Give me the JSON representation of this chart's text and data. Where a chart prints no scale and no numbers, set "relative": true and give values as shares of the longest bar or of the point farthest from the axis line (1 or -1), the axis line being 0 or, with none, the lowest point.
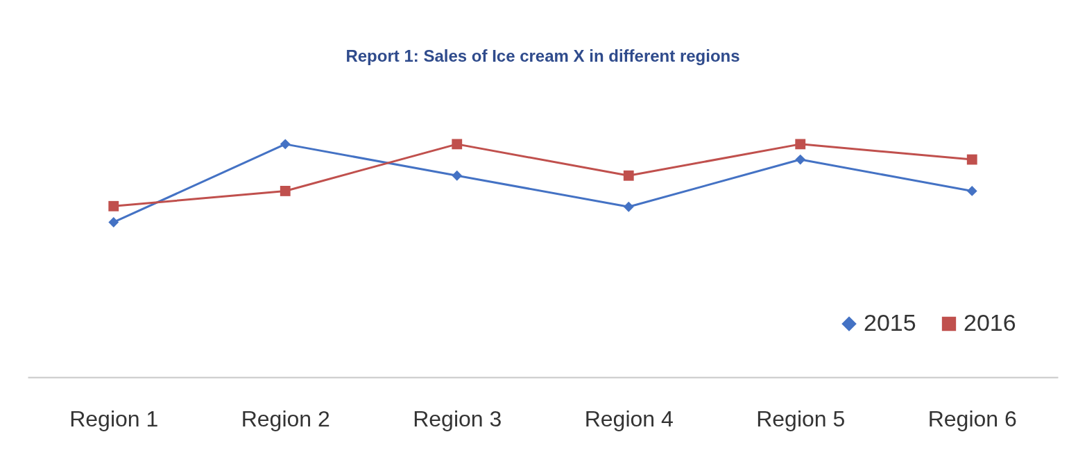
{
  "chart_data": {
    "type": "line",
    "title": "Report 1: Sales of Ice cream X in different regions",
    "relative": true,
    "legend": "bottom right",
    "categories": [
      "Region 1",
      "Region 2",
      "Region 3",
      "Region 4",
      "Region 5",
      "Region 6"
    ],
    "series": [
      {
        "name": "2015",
        "color": "#4472c4",
        "marker": "diamond",
        "values": [
          0.665,
          1,
          0.865,
          0.731,
          0.934,
          0.799
        ]
      },
      {
        "name": "2016",
        "color": "#c0504d",
        "marker": "square",
        "values": [
          0.734,
          0.799,
          1,
          0.865,
          1,
          0.934
        ]
      }
    ]
  }
}
